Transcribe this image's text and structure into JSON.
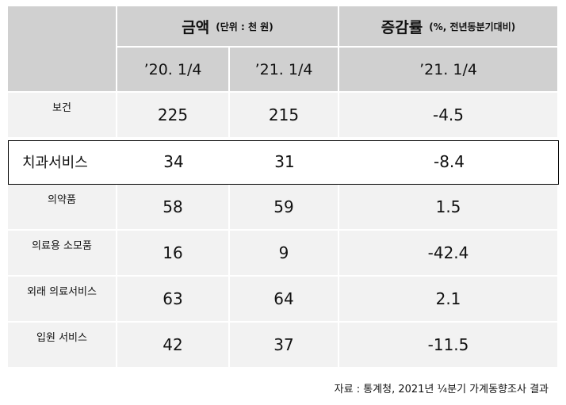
{
  "header": {
    "amount_title": "금액",
    "amount_unit": "(단위 : 천 원)",
    "change_title": "증감률",
    "change_unit": "(%, 전년동분기대비)",
    "periods": [
      "’20. 1/4",
      "’21. 1/4",
      "’21. 1/4"
    ]
  },
  "table": {
    "rows": [
      [
        "보건",
        225,
        215,
        -4.5
      ],
      [
        "치과서비스",
        34,
        31,
        -8.4
      ],
      [
        "의약품",
        58,
        59,
        1.5
      ],
      [
        "의료용 소모품",
        16,
        9,
        -42.4
      ],
      [
        "외래 의료서비스",
        63,
        64,
        2.1
      ],
      [
        "입원 서비스",
        42,
        37,
        -11.5
      ]
    ]
  },
  "highlighted_row": 1,
  "source": "자료 : 통계청, 2021년 ¼분기 가계동향조사 결과"
}
